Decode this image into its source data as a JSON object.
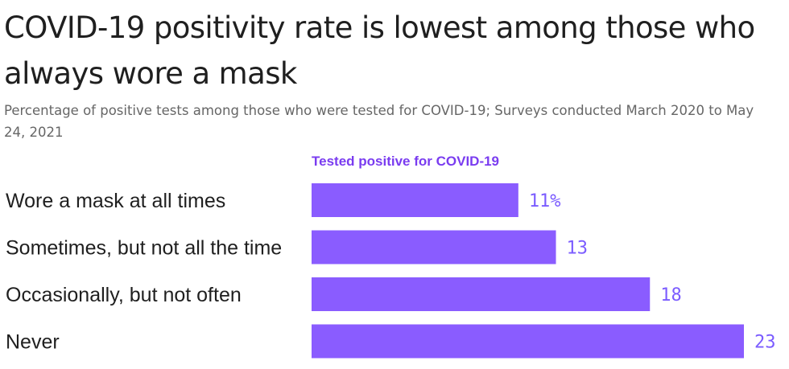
{
  "title": "COVID-19 positivity rate is lowest among those who always wore a mask",
  "subtitle": "Percentage of positive tests among those who were tested for COVID-19; Surveys conducted March 2020 to May 24, 2021",
  "colors": {
    "bar": "#8a5cff",
    "value_text": "#7b5cff",
    "legend_text": "#7a3cf0"
  },
  "chart_data": {
    "type": "bar",
    "orientation": "horizontal",
    "series": [
      {
        "name": "Tested positive for COVID-19",
        "values": [
          11,
          13,
          18,
          23
        ]
      }
    ],
    "categories": [
      "Wore a mask at all times",
      "Sometimes, but not all the time",
      "Occasionally, but not often",
      "Never"
    ],
    "value_labels": [
      "11%",
      "13",
      "18",
      "23"
    ],
    "xlim": [
      0,
      23
    ],
    "grid": false,
    "legend": "top-left"
  }
}
